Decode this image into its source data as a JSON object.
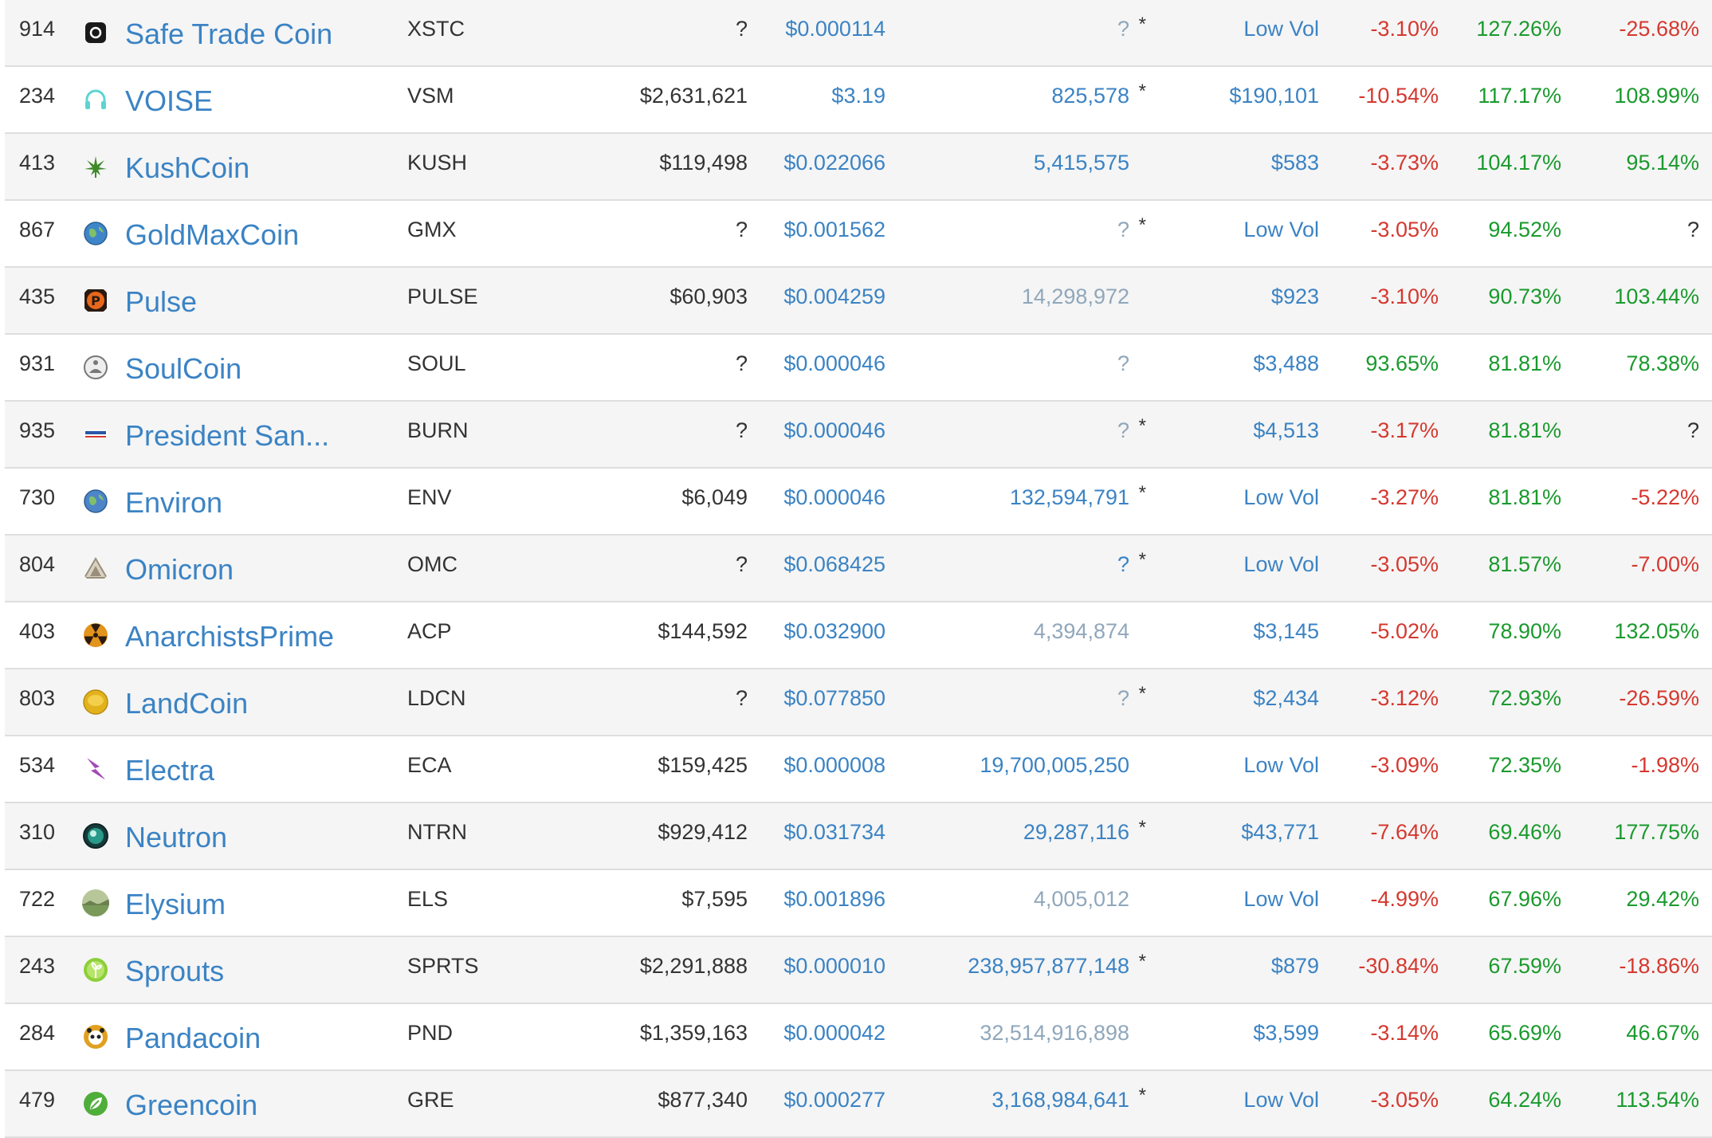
{
  "rows": [
    {
      "rank": "914",
      "name": "Safe Trade Coin",
      "symbol": "XSTC",
      "market_cap": "?",
      "price": "$0.000114",
      "supply": "?",
      "supply_star": "*",
      "supply_muted": true,
      "volume": "Low Vol",
      "change_1h": "-3.10%",
      "change_24h": "127.26%",
      "change_7d": "-25.68%",
      "icon": "safe-trade-coin-icon",
      "icon_color": "#1a1a1a"
    },
    {
      "rank": "234",
      "name": "VOISE",
      "symbol": "VSM",
      "market_cap": "$2,631,621",
      "price": "$3.19",
      "supply": "825,578",
      "supply_star": "*",
      "supply_muted": false,
      "volume": "$190,101",
      "change_1h": "-10.54%",
      "change_24h": "117.17%",
      "change_7d": "108.99%",
      "icon": "headphones-icon",
      "icon_color": "#5fd3d3"
    },
    {
      "rank": "413",
      "name": "KushCoin",
      "symbol": "KUSH",
      "market_cap": "$119,498",
      "price": "$0.022066",
      "supply": "5,415,575",
      "supply_star": "",
      "supply_muted": false,
      "volume": "$583",
      "change_1h": "-3.73%",
      "change_24h": "104.17%",
      "change_7d": "95.14%",
      "icon": "leaf-icon",
      "icon_color": "#3e8a2a"
    },
    {
      "rank": "867",
      "name": "GoldMaxCoin",
      "symbol": "GMX",
      "market_cap": "?",
      "price": "$0.001562",
      "supply": "?",
      "supply_star": "*",
      "supply_muted": true,
      "volume": "Low Vol",
      "change_1h": "-3.05%",
      "change_24h": "94.52%",
      "change_7d": "?",
      "icon": "globe-icon",
      "icon_color": "#3f86c9"
    },
    {
      "rank": "435",
      "name": "Pulse",
      "symbol": "PULSE",
      "market_cap": "$60,903",
      "price": "$0.004259",
      "supply": "14,298,972",
      "supply_star": "",
      "supply_muted": true,
      "volume": "$923",
      "change_1h": "-3.10%",
      "change_24h": "90.73%",
      "change_7d": "103.44%",
      "icon": "pulse-p-icon",
      "icon_color": "#e8671c"
    },
    {
      "rank": "931",
      "name": "SoulCoin",
      "symbol": "SOUL",
      "market_cap": "?",
      "price": "$0.000046",
      "supply": "?",
      "supply_star": "",
      "supply_muted": true,
      "volume": "$3,488",
      "change_1h": "93.65%",
      "change_24h": "81.81%",
      "change_7d": "78.38%",
      "icon": "meditation-icon",
      "icon_color": "#777777"
    },
    {
      "rank": "935",
      "name": "President San...",
      "symbol": "BURN",
      "market_cap": "?",
      "price": "$0.000046",
      "supply": "?",
      "supply_star": "*",
      "supply_muted": true,
      "volume": "$4,513",
      "change_1h": "-3.17%",
      "change_24h": "81.81%",
      "change_7d": "?",
      "icon": "campaign-logo-icon",
      "icon_color": "#2a56a6"
    },
    {
      "rank": "730",
      "name": "Environ",
      "symbol": "ENV",
      "market_cap": "$6,049",
      "price": "$0.000046",
      "supply": "132,594,791",
      "supply_star": "*",
      "supply_muted": false,
      "volume": "Low Vol",
      "change_1h": "-3.27%",
      "change_24h": "81.81%",
      "change_7d": "-5.22%",
      "icon": "earth-icon",
      "icon_color": "#4e84c8"
    },
    {
      "rank": "804",
      "name": "Omicron",
      "symbol": "OMC",
      "market_cap": "?",
      "price": "$0.068425",
      "supply": "?",
      "supply_star": "*",
      "supply_muted": false,
      "volume": "Low Vol",
      "change_1h": "-3.05%",
      "change_24h": "81.57%",
      "change_7d": "-7.00%",
      "icon": "triangle-icon",
      "icon_color": "#9a8f7a"
    },
    {
      "rank": "403",
      "name": "AnarchistsPrime",
      "symbol": "ACP",
      "market_cap": "$144,592",
      "price": "$0.032900",
      "supply": "4,394,874",
      "supply_star": "",
      "supply_muted": true,
      "volume": "$3,145",
      "change_1h": "-5.02%",
      "change_24h": "78.90%",
      "change_7d": "132.05%",
      "icon": "radiation-icon",
      "icon_color": "#e3941c"
    },
    {
      "rank": "803",
      "name": "LandCoin",
      "symbol": "LDCN",
      "market_cap": "?",
      "price": "$0.077850",
      "supply": "?",
      "supply_star": "*",
      "supply_muted": true,
      "volume": "$2,434",
      "change_1h": "-3.12%",
      "change_24h": "72.93%",
      "change_7d": "-26.59%",
      "icon": "gold-coin-icon",
      "icon_color": "#e2b21c"
    },
    {
      "rank": "534",
      "name": "Electra",
      "symbol": "ECA",
      "market_cap": "$159,425",
      "price": "$0.000008",
      "supply": "19,700,005,250",
      "supply_star": "",
      "supply_muted": false,
      "volume": "Low Vol",
      "change_1h": "-3.09%",
      "change_24h": "72.35%",
      "change_7d": "-1.98%",
      "icon": "lightning-icon",
      "icon_color": "#a24ab5"
    },
    {
      "rank": "310",
      "name": "Neutron",
      "symbol": "NTRN",
      "market_cap": "$929,412",
      "price": "$0.031734",
      "supply": "29,287,116",
      "supply_star": "*",
      "supply_muted": false,
      "volume": "$43,771",
      "change_1h": "-7.64%",
      "change_24h": "69.46%",
      "change_7d": "177.75%",
      "icon": "neutron-orb-icon",
      "icon_color": "#2a9a8a"
    },
    {
      "rank": "722",
      "name": "Elysium",
      "symbol": "ELS",
      "market_cap": "$7,595",
      "price": "$0.001896",
      "supply": "4,005,012",
      "supply_star": "",
      "supply_muted": true,
      "volume": "Low Vol",
      "change_1h": "-4.99%",
      "change_24h": "67.96%",
      "change_7d": "29.42%",
      "icon": "landscape-icon",
      "icon_color": "#7a9a5a"
    },
    {
      "rank": "243",
      "name": "Sprouts",
      "symbol": "SPRTS",
      "market_cap": "$2,291,888",
      "price": "$0.000010",
      "supply": "238,957,877,148",
      "supply_star": "*",
      "supply_muted": false,
      "volume": "$879",
      "change_1h": "-30.84%",
      "change_24h": "67.59%",
      "change_7d": "-18.86%",
      "icon": "sprout-icon",
      "icon_color": "#8ccf3a"
    },
    {
      "rank": "284",
      "name": "Pandacoin",
      "symbol": "PND",
      "market_cap": "$1,359,163",
      "price": "$0.000042",
      "supply": "32,514,916,898",
      "supply_star": "",
      "supply_muted": true,
      "volume": "$3,599",
      "change_1h": "-3.14%",
      "change_24h": "65.69%",
      "change_7d": "46.67%",
      "icon": "panda-icon",
      "icon_color": "#e0a020"
    },
    {
      "rank": "479",
      "name": "Greencoin",
      "symbol": "GRE",
      "market_cap": "$877,340",
      "price": "$0.000277",
      "supply": "3,168,984,641",
      "supply_star": "*",
      "supply_muted": false,
      "volume": "Low Vol",
      "change_1h": "-3.05%",
      "change_24h": "64.24%",
      "change_7d": "113.54%",
      "icon": "green-leaf-icon",
      "icon_color": "#4fae3a"
    }
  ]
}
